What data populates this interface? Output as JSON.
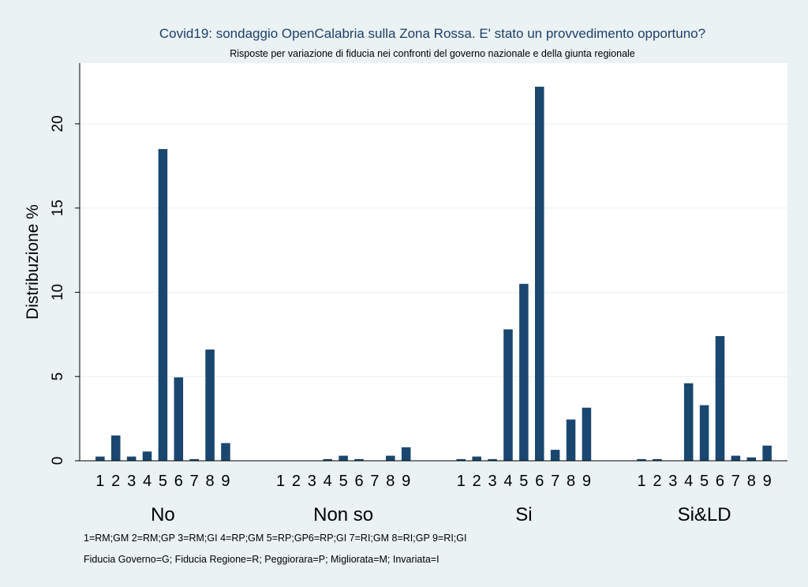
{
  "chart_data": {
    "type": "bar",
    "title": "Covid19: sondaggio OpenCalabria sulla Zona Rossa. E' stato un provvedimento opportuno?",
    "subtitle": "Risposte per variazione di fiducia nei confronti del governo nazionale e della giunta regionale",
    "ylabel": "Distribuzione %",
    "xlabel": "",
    "ylim": [
      0,
      23.6
    ],
    "yticks": [
      "0",
      "5",
      "10",
      "15",
      "20"
    ],
    "grid": true,
    "legend": "none",
    "categories": [
      "1",
      "2",
      "3",
      "4",
      "5",
      "6",
      "7",
      "8",
      "9"
    ],
    "groups": [
      {
        "label": "No",
        "values": [
          0.25,
          1.5,
          0.25,
          0.55,
          18.5,
          4.95,
          0.1,
          6.6,
          1.05
        ]
      },
      {
        "label": "Non so",
        "values": [
          0,
          0,
          0,
          0.1,
          0.3,
          0.1,
          0,
          0.3,
          0.8
        ]
      },
      {
        "label": "Si",
        "values": [
          0.1,
          0.25,
          0.1,
          7.8,
          10.5,
          22.2,
          0.65,
          2.45,
          3.15
        ]
      },
      {
        "label": "Si&LD",
        "values": [
          0.1,
          0.1,
          0,
          4.6,
          3.3,
          7.4,
          0.3,
          0.2,
          0.9
        ]
      }
    ]
  },
  "notes": [
    "1=RM;GM 2=RM;GP 3=RM;GI 4=RP;GM 5=RP;GP6=RP;GI 7=RI;GM 8=RI;GP 9=RI;GI",
    "Fiducia Governo=G; Fiducia Regione=R; Peggiorara=P; Migliorata=M; Invariata=I"
  ],
  "colors": {
    "bar": "#1a476f",
    "background": "#eaf2f3",
    "plot_background": "#ffffff",
    "title": "#1e3f6b",
    "grid": "#eaf2f3"
  }
}
